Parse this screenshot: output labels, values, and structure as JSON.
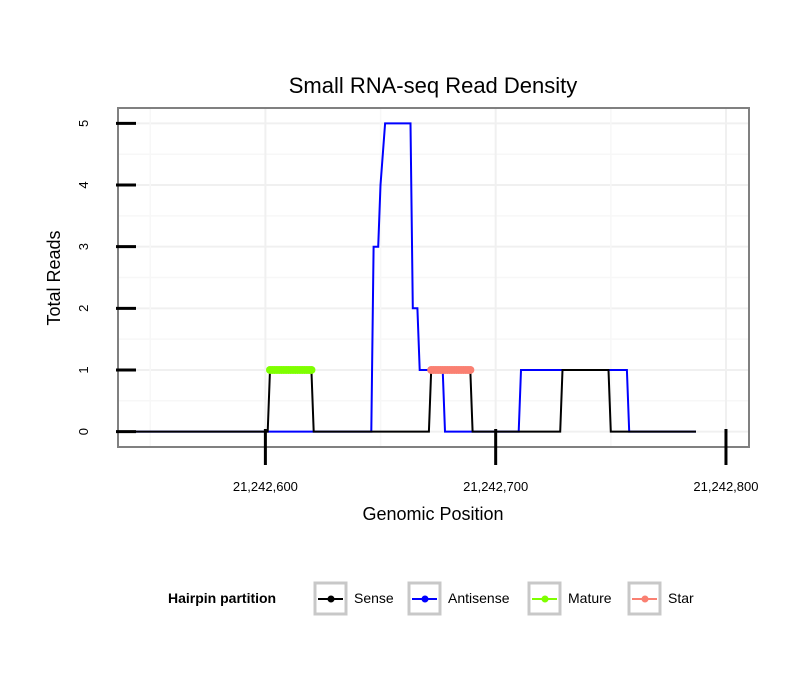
{
  "chart_data": {
    "type": "line",
    "title": "Small RNA-seq Read Density",
    "xlabel": "Genomic Position",
    "ylabel": "Total Reads",
    "xlim": [
      21242536,
      21242810
    ],
    "ylim": [
      -0.25,
      5.25
    ],
    "x_ticks": [
      21242600,
      21242700,
      21242800
    ],
    "x_tick_labels": [
      "21,242,600",
      "21,242,700",
      "21,242,800"
    ],
    "y_ticks": [
      0,
      1,
      2,
      3,
      4,
      5
    ],
    "y_tick_labels": [
      "0",
      "1",
      "2",
      "3",
      "4",
      "5"
    ],
    "grid": true,
    "legend": {
      "title": "Hairpin partition",
      "position": "bottom",
      "entries": [
        "Sense",
        "Antisense",
        "Mature",
        "Star"
      ]
    },
    "series": [
      {
        "name": "Antisense",
        "color": "#0000FF",
        "style": "line",
        "x": [
          21242543,
          21242646,
          21242647,
          21242649,
          21242650,
          21242652,
          21242663,
          21242664,
          21242666,
          21242667,
          21242671,
          21242672,
          21242677,
          21242678,
          21242688,
          21242689,
          21242710,
          21242711,
          21242757,
          21242758,
          21242787
        ],
        "y": [
          0,
          0,
          3,
          3,
          4,
          5,
          5,
          2,
          2,
          1,
          1,
          1,
          1,
          0,
          0,
          0,
          0,
          1,
          1,
          0,
          0
        ]
      },
      {
        "name": "Sense",
        "color": "#000000",
        "style": "line",
        "x": [
          21242543,
          21242601,
          21242602,
          21242620,
          21242621,
          21242671,
          21242672,
          21242689,
          21242690,
          21242728,
          21242729,
          21242749,
          21242750,
          21242787
        ],
        "y": [
          0,
          0,
          1,
          1,
          0,
          0,
          1,
          1,
          0,
          0,
          1,
          1,
          0,
          0
        ]
      },
      {
        "name": "Mature",
        "color": "#7FFF00",
        "style": "points-line",
        "x": [
          21242602,
          21242603,
          21242604,
          21242605,
          21242606,
          21242607,
          21242608,
          21242609,
          21242610,
          21242611,
          21242612,
          21242613,
          21242614,
          21242615,
          21242616,
          21242617,
          21242618,
          21242619,
          21242620
        ],
        "y": [
          1,
          1,
          1,
          1,
          1,
          1,
          1,
          1,
          1,
          1,
          1,
          1,
          1,
          1,
          1,
          1,
          1,
          1,
          1
        ]
      },
      {
        "name": "Star",
        "color": "#FA8072",
        "style": "points-line",
        "x": [
          21242672,
          21242673,
          21242674,
          21242675,
          21242676,
          21242677,
          21242678,
          21242679,
          21242680,
          21242681,
          21242682,
          21242683,
          21242684,
          21242685,
          21242686,
          21242687,
          21242688,
          21242689
        ],
        "y": [
          1,
          1,
          1,
          1,
          1,
          1,
          1,
          1,
          1,
          1,
          1,
          1,
          1,
          1,
          1,
          1,
          1,
          1
        ]
      }
    ]
  }
}
